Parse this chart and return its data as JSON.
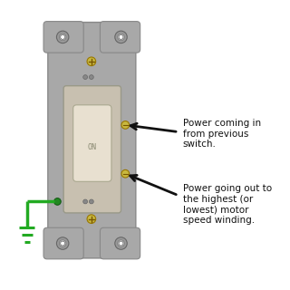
{
  "bg_color": "#ffffff",
  "switch_plate_color": "#a8a8a8",
  "switch_body_color": "#c8c0b0",
  "toggle_color": "#e8e0d0",
  "screw_color": "#c8b840",
  "green_screw_color": "#228822",
  "ground_color": "#22aa22",
  "arrow_color": "#111111",
  "text_color": "#111111",
  "annotation1": "Power coming in\nfrom previous\nswitch.",
  "annotation2": "Power going out to\nthe highest (or\nlowest) motor\nspeed winding.",
  "font_size": 7.5,
  "on_label": "ON"
}
